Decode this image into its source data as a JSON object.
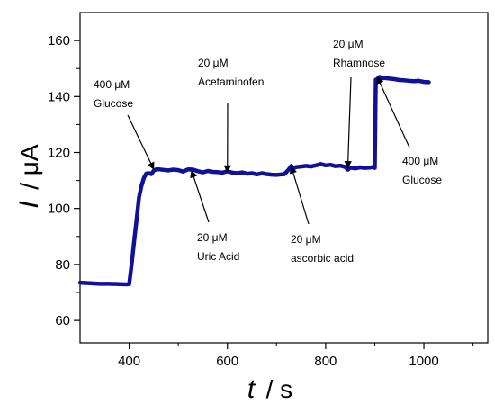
{
  "chart_data": {
    "type": "line",
    "title": "",
    "xlabel": {
      "variable": "t",
      "unit": "/ s"
    },
    "ylabel": {
      "variable": "I",
      "unit": "/ μA"
    },
    "xlim": [
      300,
      1130
    ],
    "ylim": [
      52,
      170
    ],
    "xticks": [
      400,
      600,
      800,
      1000
    ],
    "yticks": [
      60,
      80,
      100,
      120,
      140,
      160
    ],
    "grid": false,
    "legend": "none",
    "series_color": "#10109a",
    "series": [
      {
        "x": [
          300,
          320,
          340,
          360,
          380,
          395,
          400,
          405,
          410,
          415,
          420,
          425,
          430,
          435,
          440,
          445,
          450,
          455,
          460,
          470,
          480,
          490,
          500,
          510,
          520,
          530,
          540,
          550,
          560,
          570,
          580,
          590,
          600,
          610,
          620,
          630,
          640,
          650,
          660,
          670,
          680,
          690,
          700,
          710,
          715,
          720,
          725,
          730,
          735,
          740,
          750,
          760,
          770,
          780,
          790,
          800,
          810,
          820,
          830,
          840,
          845,
          850,
          860,
          870,
          880,
          890,
          895,
          898,
          900,
          902,
          905,
          910,
          915,
          920,
          930,
          940,
          950,
          960,
          970,
          980,
          990,
          1000,
          1010
        ],
        "y": [
          73.5,
          73.3,
          73.1,
          73.1,
          73.0,
          72.9,
          73.0,
          80,
          88,
          96,
          104,
          108,
          111,
          112.5,
          112.6,
          112.3,
          113.5,
          114.0,
          114.0,
          113.8,
          113.6,
          113.9,
          113.7,
          113.2,
          114.0,
          113.9,
          113.3,
          112.9,
          113.4,
          113.1,
          113.0,
          112.8,
          113.3,
          112.8,
          112.6,
          112.9,
          112.4,
          112.6,
          112.2,
          112.6,
          112.3,
          112.1,
          112.0,
          112.2,
          112.2,
          113.0,
          114.0,
          115.2,
          114.4,
          114.8,
          115.0,
          115.2,
          115.0,
          115.4,
          115.9,
          115.4,
          115.6,
          115.1,
          115.3,
          114.8,
          113.9,
          114.6,
          114.3,
          114.7,
          114.5,
          114.6,
          114.8,
          114.6,
          114.5,
          146.0,
          146.2,
          147.0,
          146.5,
          146.6,
          146.4,
          146.2,
          145.9,
          145.8,
          145.6,
          145.5,
          145.6,
          145.2,
          145.1
        ]
      }
    ],
    "annotations": [
      {
        "lines": [
          "400 μM",
          "Glucose"
        ],
        "target": [
          450,
          114
        ]
      },
      {
        "lines": [
          "20 μM",
          "Acetaminofen"
        ],
        "target": [
          600,
          113
        ]
      },
      {
        "lines": [
          "20 μM",
          "Uric Acid"
        ],
        "target": [
          527,
          113.5
        ]
      },
      {
        "lines": [
          "20 μM",
          "ascorbic acid"
        ],
        "target": [
          730,
          115
        ]
      },
      {
        "lines": [
          "20 μM",
          "Rhamnose"
        ],
        "target": [
          845,
          114.5
        ]
      },
      {
        "lines": [
          "400 μM",
          "Glucose"
        ],
        "target": [
          905,
          147
        ]
      }
    ]
  }
}
